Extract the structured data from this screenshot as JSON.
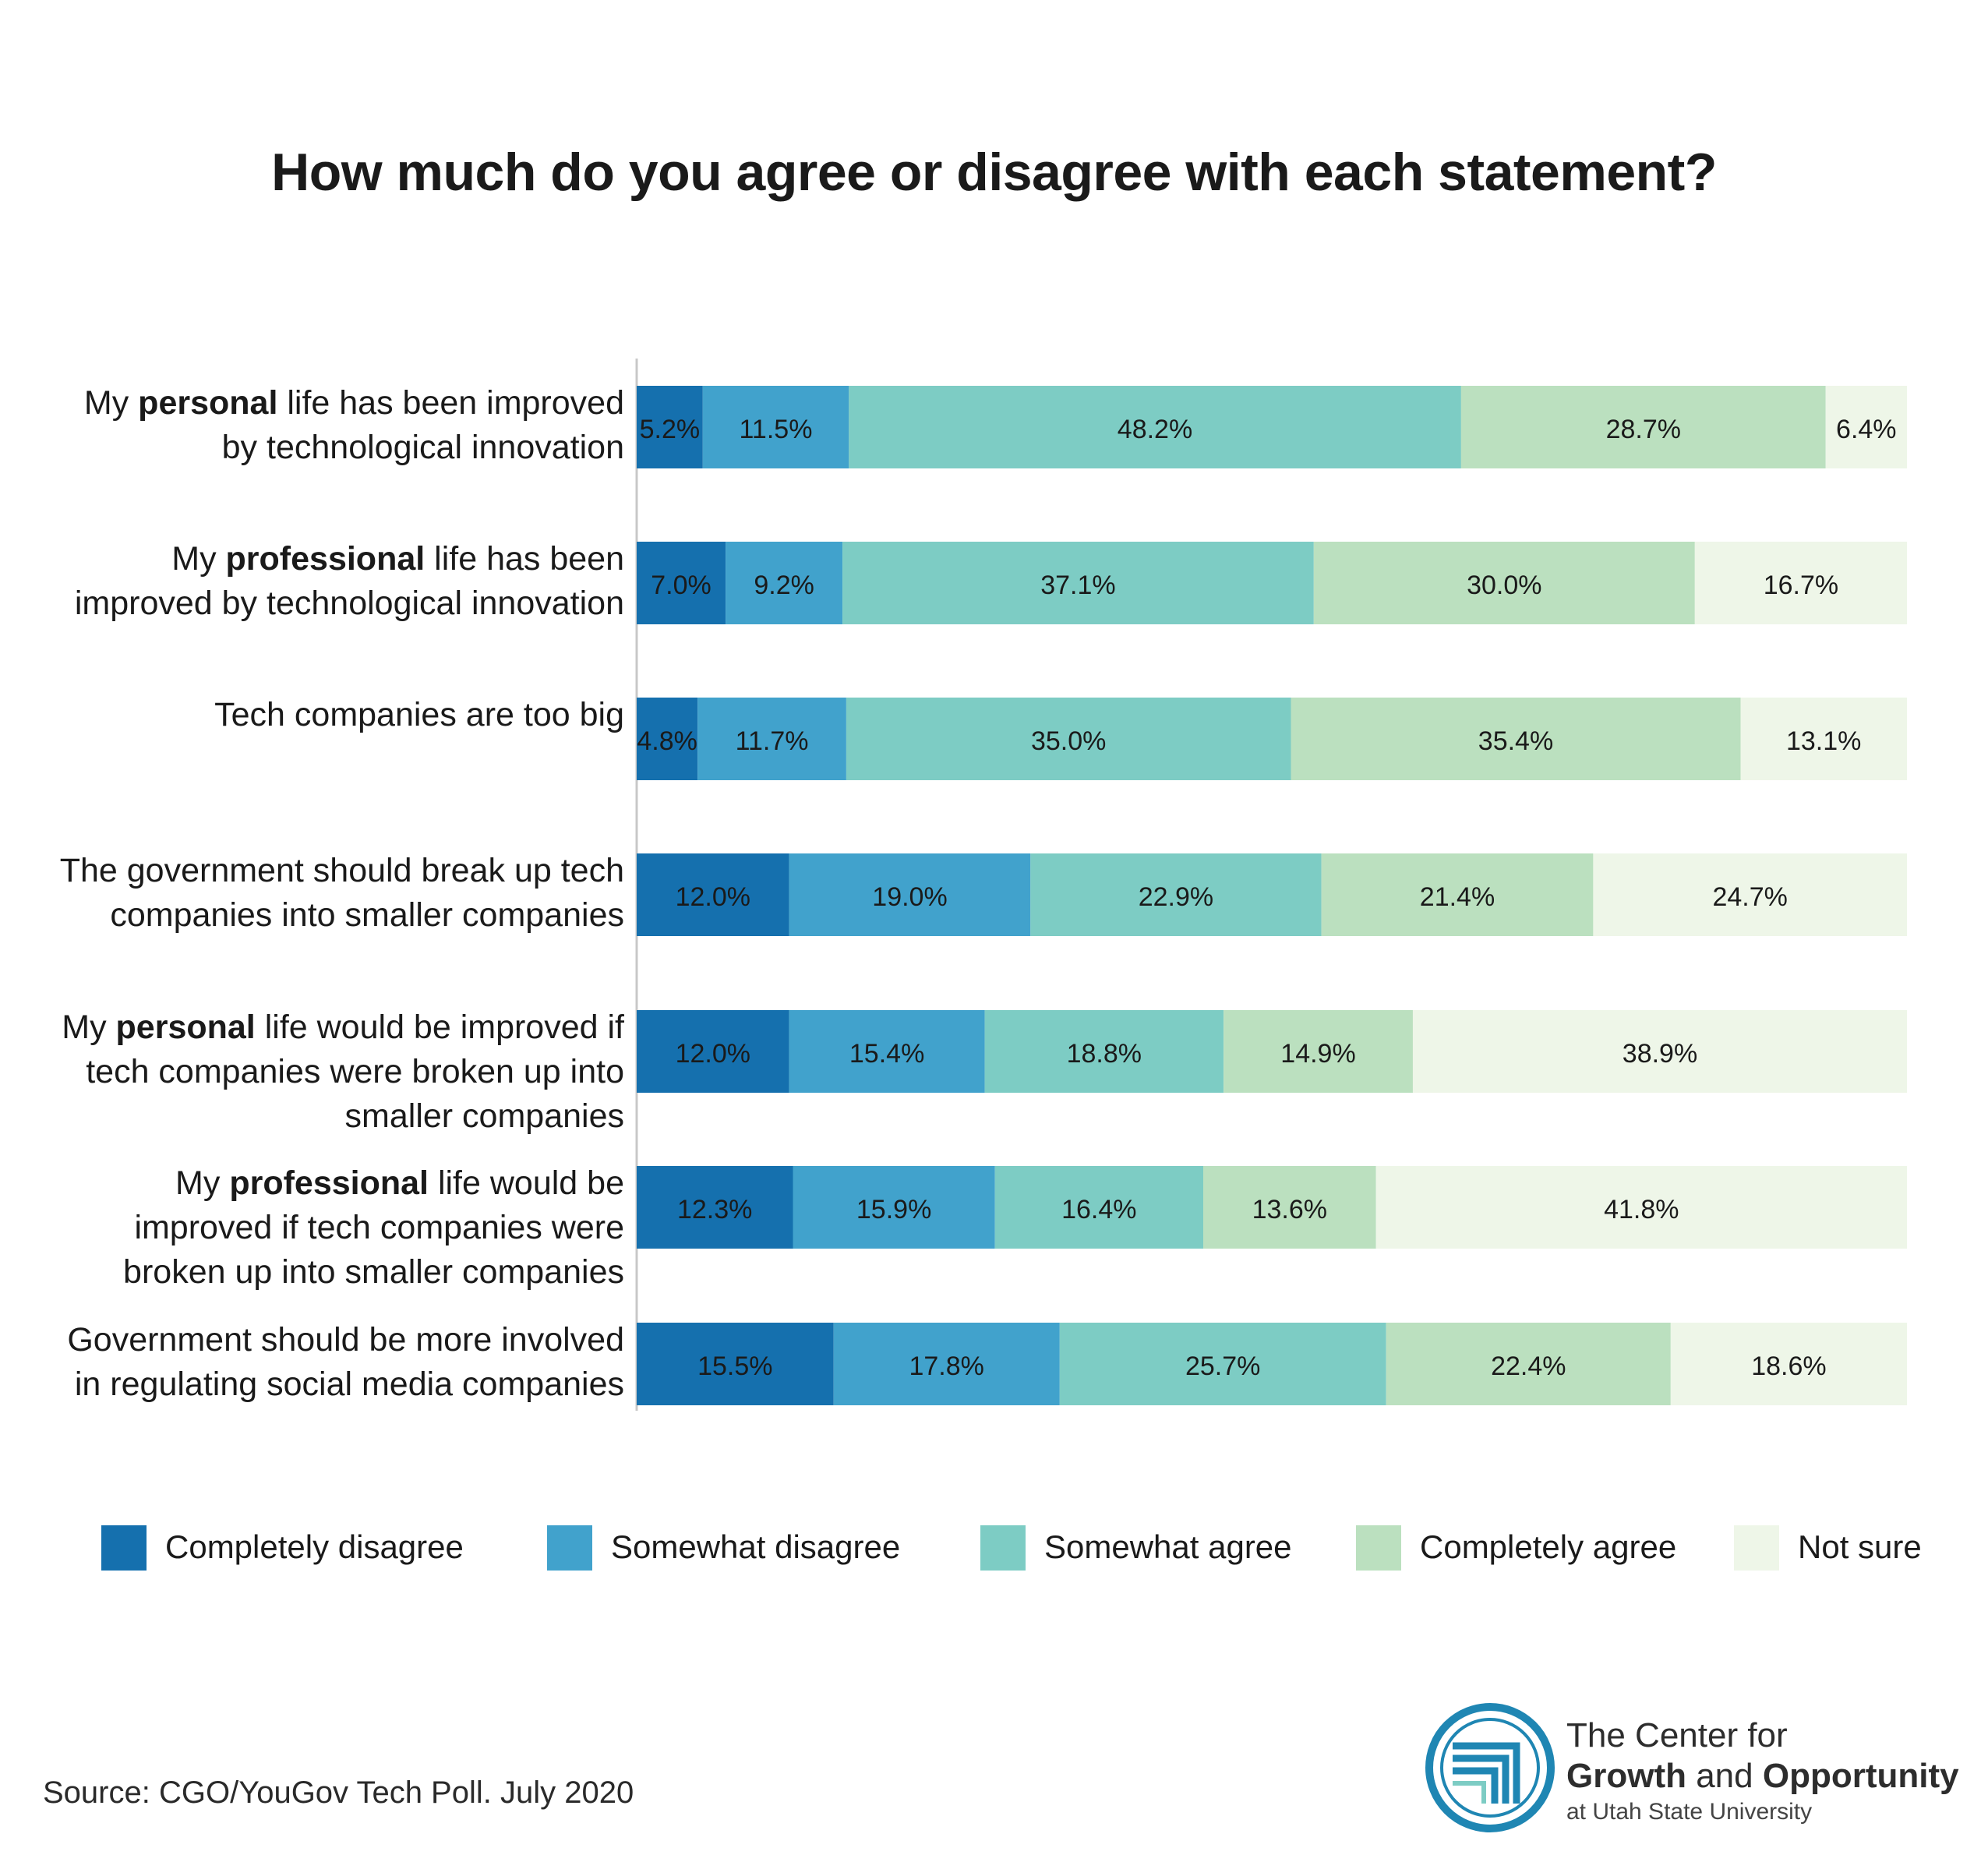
{
  "chart_data": {
    "type": "bar",
    "orientation": "horizontal",
    "stacked": true,
    "title": "How much do you agree or disagree with each statement?",
    "categories": [
      {
        "parts": [
          {
            "text": "My ",
            "bold": false
          },
          {
            "text": "personal",
            "bold": true
          },
          {
            "text": " life has been improved",
            "bold": false
          },
          {
            "br": true
          },
          {
            "text": "by technological innovation",
            "bold": false
          }
        ]
      },
      {
        "parts": [
          {
            "text": "My ",
            "bold": false
          },
          {
            "text": "professional",
            "bold": true
          },
          {
            "text": " life has been",
            "bold": false
          },
          {
            "br": true
          },
          {
            "text": "improved by technological innovation",
            "bold": false
          }
        ]
      },
      {
        "parts": [
          {
            "text": "Tech companies are too big",
            "bold": false
          }
        ]
      },
      {
        "parts": [
          {
            "text": "The government should break up tech",
            "bold": false
          },
          {
            "br": true
          },
          {
            "text": "companies into smaller companies",
            "bold": false
          }
        ]
      },
      {
        "parts": [
          {
            "text": "My ",
            "bold": false
          },
          {
            "text": "personal",
            "bold": true
          },
          {
            "text": " life would be improved if",
            "bold": false
          },
          {
            "br": true
          },
          {
            "text": "tech companies were broken up into",
            "bold": false
          },
          {
            "br": true
          },
          {
            "text": "smaller companies",
            "bold": false
          }
        ]
      },
      {
        "parts": [
          {
            "text": "My ",
            "bold": false
          },
          {
            "text": "professional",
            "bold": true
          },
          {
            "text": " life would be",
            "bold": false
          },
          {
            "br": true
          },
          {
            "text": "improved if tech companies were",
            "bold": false
          },
          {
            "br": true
          },
          {
            "text": "broken up into smaller companies",
            "bold": false
          }
        ]
      },
      {
        "parts": [
          {
            "text": "Government should be more involved",
            "bold": false
          },
          {
            "br": true
          },
          {
            "text": "in regulating social media companies",
            "bold": false
          }
        ]
      }
    ],
    "series": [
      {
        "name": "Completely disagree",
        "color": "#1570ae",
        "values": [
          5.2,
          7.0,
          4.8,
          12.0,
          12.0,
          12.3,
          15.5
        ],
        "labels": [
          "5.2%",
          "7.0%",
          "4.8%",
          "12.0%",
          "12.0%",
          "12.3%",
          "15.5%"
        ]
      },
      {
        "name": "Somewhat disagree",
        "color": "#41a2cc",
        "values": [
          11.5,
          9.2,
          11.7,
          19.0,
          15.4,
          15.9,
          17.8
        ],
        "labels": [
          "11.5%",
          "9.2%",
          "11.7%",
          "19.0%",
          "15.4%",
          "15.9%",
          "17.8%"
        ]
      },
      {
        "name": "Somewhat agree",
        "color": "#7dccc4",
        "values": [
          48.2,
          37.1,
          35.0,
          22.9,
          18.8,
          16.4,
          25.7
        ],
        "labels": [
          "48.2%",
          "37.1%",
          "35.0%",
          "22.9%",
          "18.8%",
          "16.4%",
          "25.7%"
        ]
      },
      {
        "name": "Completely agree",
        "color": "#bbe0bf",
        "values": [
          28.7,
          30.0,
          35.4,
          21.4,
          14.9,
          13.6,
          22.4
        ],
        "labels": [
          "28.7%",
          "30.0%",
          "35.4%",
          "21.4%",
          "14.9%",
          "13.6%",
          "22.4%"
        ]
      },
      {
        "name": "Not sure",
        "color": "#eef6e8",
        "values": [
          6.4,
          16.7,
          13.1,
          24.7,
          38.9,
          41.8,
          18.6
        ],
        "labels": [
          "6.4%",
          "16.7%",
          "13.1%",
          "24.7%",
          "38.9%",
          "41.8%",
          "18.6%"
        ]
      }
    ],
    "xlim": [
      0,
      100
    ],
    "legend_position": "bottom",
    "grid": false
  },
  "source": "Source: CGO/YouGov Tech Poll. July 2020",
  "logo": {
    "line1": "The Center for",
    "line2_bold_a": "Growth",
    "line2_mid": " and ",
    "line2_bold_b": "Opportunity",
    "line3": "at Utah State University",
    "ring_color": "#1f86b3"
  }
}
